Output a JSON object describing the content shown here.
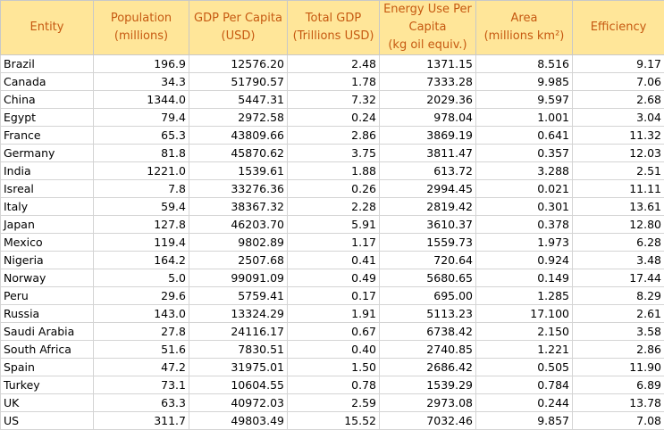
{
  "headers": [
    {
      "lines": [
        "Entity"
      ]
    },
    {
      "lines": [
        "Population",
        "(millions)"
      ]
    },
    {
      "lines": [
        "GDP Per Capita",
        "(USD)"
      ]
    },
    {
      "lines": [
        "Total GDP",
        "(Trillions USD)"
      ]
    },
    {
      "lines": [
        "Energy Use Per",
        "Capita",
        "(kg oil equiv.)"
      ]
    },
    {
      "lines": [
        "Area",
        "(millions km²)"
      ]
    },
    {
      "lines": [
        "Efficiency"
      ]
    }
  ],
  "rows": [
    [
      "Brazil",
      "196.9",
      "12576.20",
      "2.48",
      "1371.15",
      "8.516",
      "9.17"
    ],
    [
      "Canada",
      "34.3",
      "51790.57",
      "1.78",
      "7333.28",
      "9.985",
      "7.06"
    ],
    [
      "China",
      "1344.0",
      "5447.31",
      "7.32",
      "2029.36",
      "9.597",
      "2.68"
    ],
    [
      "Egypt",
      "79.4",
      "2972.58",
      "0.24",
      "978.04",
      "1.001",
      "3.04"
    ],
    [
      "France",
      "65.3",
      "43809.66",
      "2.86",
      "3869.19",
      "0.641",
      "11.32"
    ],
    [
      "Germany",
      "81.8",
      "45870.62",
      "3.75",
      "3811.47",
      "0.357",
      "12.03"
    ],
    [
      "India",
      "1221.0",
      "1539.61",
      "1.88",
      "613.72",
      "3.288",
      "2.51"
    ],
    [
      "Isreal",
      "7.8",
      "33276.36",
      "0.26",
      "2994.45",
      "0.021",
      "11.11"
    ],
    [
      "Italy",
      "59.4",
      "38367.32",
      "2.28",
      "2819.42",
      "0.301",
      "13.61"
    ],
    [
      "Japan",
      "127.8",
      "46203.70",
      "5.91",
      "3610.37",
      "0.378",
      "12.80"
    ],
    [
      "Mexico",
      "119.4",
      "9802.89",
      "1.17",
      "1559.73",
      "1.973",
      "6.28"
    ],
    [
      "Nigeria",
      "164.2",
      "2507.68",
      "0.41",
      "720.64",
      "0.924",
      "3.48"
    ],
    [
      "Norway",
      "5.0",
      "99091.09",
      "0.49",
      "5680.65",
      "0.149",
      "17.44"
    ],
    [
      "Peru",
      "29.6",
      "5759.41",
      "0.17",
      "695.00",
      "1.285",
      "8.29"
    ],
    [
      "Russia",
      "143.0",
      "13324.29",
      "1.91",
      "5113.23",
      "17.100",
      "2.61"
    ],
    [
      "Saudi Arabia",
      "27.8",
      "24116.17",
      "0.67",
      "6738.42",
      "2.150",
      "3.58"
    ],
    [
      "South Africa",
      "51.6",
      "7830.51",
      "0.40",
      "2740.85",
      "1.221",
      "2.86"
    ],
    [
      "Spain",
      "47.2",
      "31975.01",
      "1.50",
      "2686.42",
      "0.505",
      "11.90"
    ],
    [
      "Turkey",
      "73.1",
      "10604.55",
      "0.78",
      "1539.29",
      "0.784",
      "6.89"
    ],
    [
      "UK",
      "63.3",
      "40972.03",
      "2.59",
      "2973.08",
      "0.244",
      "13.78"
    ],
    [
      "US",
      "311.7",
      "49803.49",
      "15.52",
      "7032.46",
      "9.857",
      "7.08"
    ]
  ],
  "colors": {
    "header_fill": "#ffe699",
    "header_text": "#c65911",
    "grid": "#d4d4d4"
  }
}
